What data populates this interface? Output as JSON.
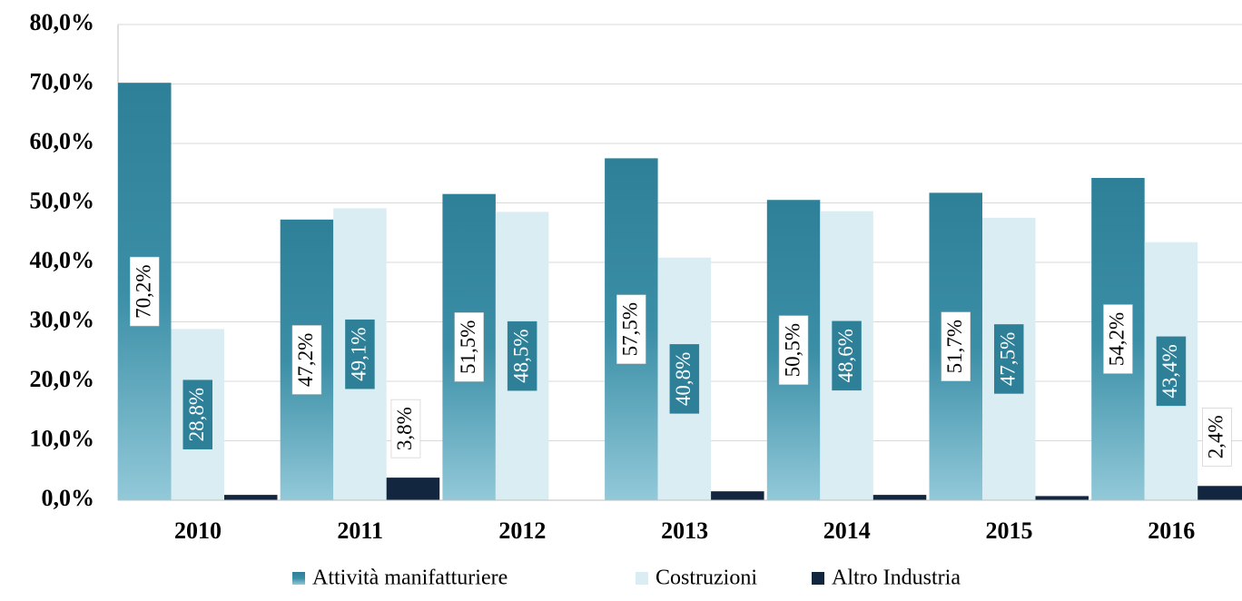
{
  "chart_data": {
    "type": "bar",
    "categories": [
      "2010",
      "2011",
      "2012",
      "2013",
      "2014",
      "2015",
      "2016"
    ],
    "series": [
      {
        "name": "Attività manifatturiere",
        "color": "#2e8098",
        "values": [
          70.2,
          47.2,
          51.5,
          57.5,
          50.5,
          51.7,
          54.2
        ],
        "value_labels": [
          "70,2%",
          "47,2%",
          "51,5%",
          "57,5%",
          "50,5%",
          "51,7%",
          "54,2%"
        ]
      },
      {
        "name": "Costruzioni",
        "color": "#daedf3",
        "values": [
          28.8,
          49.1,
          48.5,
          40.8,
          48.6,
          47.5,
          43.4
        ],
        "value_labels": [
          "28,8%",
          "49,1%",
          "48,5%",
          "40,8%",
          "48,6%",
          "47,5%",
          "43,4%"
        ]
      },
      {
        "name": "Altro Industria",
        "color": "#13263f",
        "values": [
          0.9,
          3.8,
          0,
          1.5,
          0.9,
          0.7,
          2.4
        ],
        "value_labels": [
          null,
          "3,8%",
          null,
          null,
          null,
          null,
          "2,4%"
        ]
      }
    ],
    "ylim": [
      0,
      80
    ],
    "yticks": [
      {
        "value": 0,
        "label": "0,0%"
      },
      {
        "value": 10,
        "label": "10,0%"
      },
      {
        "value": 20,
        "label": "20,0%"
      },
      {
        "value": 30,
        "label": "30,0%"
      },
      {
        "value": 40,
        "label": "40,0%"
      },
      {
        "value": 50,
        "label": "50,0%"
      },
      {
        "value": 60,
        "label": "60,0%"
      },
      {
        "value": 70,
        "label": "70,0%"
      },
      {
        "value": 80,
        "label": "80,0%"
      }
    ],
    "grid": true,
    "legend": "bottom"
  }
}
